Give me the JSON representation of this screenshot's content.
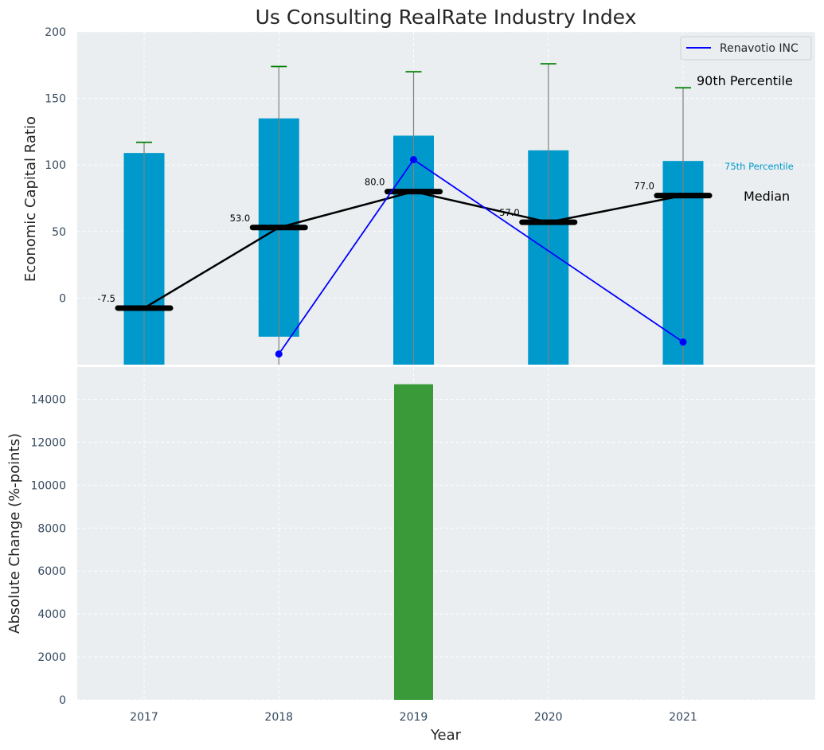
{
  "colors": {
    "panel_bg": "#eaeef0",
    "range_bar": "#0099cc",
    "median": "#000000",
    "whisker": "#808080",
    "whisker_cap": "#008000",
    "company": "#0000ff",
    "change_bar": "#3a9a3a"
  },
  "chart_data": [
    {
      "type": "bar",
      "title": "Us Consulting RealRate Industry Index",
      "ylabel": "Economic Capital Ratio",
      "xlabel": "",
      "categories": [
        "2017",
        "2018",
        "2019",
        "2020",
        "2021"
      ],
      "ylim": [
        -50,
        200
      ],
      "yticks": [
        "0",
        "50",
        "100",
        "150",
        "200"
      ],
      "grid": true,
      "range_bars": [
        {
          "low": -50,
          "high": 109
        },
        {
          "low": -29,
          "high": 135
        },
        {
          "low": -50,
          "high": 122
        },
        {
          "low": -50,
          "high": 111
        },
        {
          "low": -50,
          "high": 103
        }
      ],
      "p90": [
        117,
        174,
        170,
        176,
        158
      ],
      "median": {
        "values": [
          -7.5,
          53,
          80,
          57,
          77
        ],
        "labels": [
          "-7.5",
          "53.0",
          "80.0",
          "57.0",
          "77.0"
        ]
      },
      "series": [
        {
          "name": "Renavotio INC",
          "values": [
            null,
            -42,
            104,
            null,
            -33
          ]
        }
      ],
      "legend": "top-right",
      "annotations": {
        "p90": "90th Percentile",
        "p75": "75th Percentile",
        "median": "Median"
      }
    },
    {
      "type": "bar",
      "title": "",
      "ylabel": "Absolute Change (%-points)",
      "xlabel": "Year",
      "categories": [
        "2017",
        "2018",
        "2019",
        "2020",
        "2021"
      ],
      "values": [
        0,
        0,
        14700,
        0,
        0
      ],
      "ylim": [
        0,
        15500
      ],
      "yticks": [
        "0",
        "2000",
        "4000",
        "6000",
        "8000",
        "10000",
        "12000",
        "14000"
      ],
      "grid": true
    }
  ]
}
